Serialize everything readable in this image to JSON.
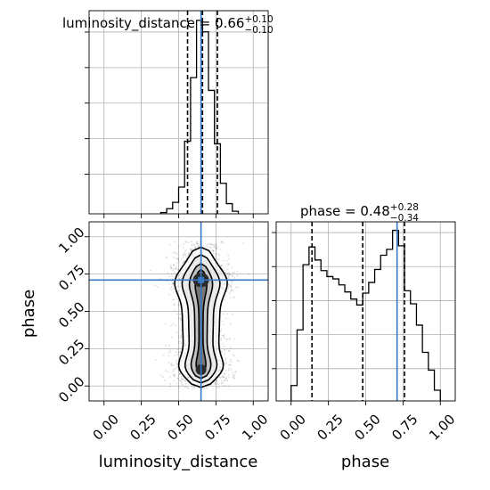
{
  "chart_data": {
    "type": "corner",
    "parameters": [
      "luminosity_distance",
      "phase"
    ],
    "truth": {
      "luminosity_distance": 0.65,
      "phase": 0.71
    },
    "truth_color": "#3778bf",
    "line_color": "#000000",
    "panels": [
      {
        "id": "hist-luminosity_distance",
        "type": "histogram",
        "title_param": "luminosity_distance",
        "title_value": "0.66",
        "title_plus": "+0.10",
        "title_minus": "−0.10",
        "xlim": [
          -0.1,
          1.1
        ],
        "xticks": [
          0.0,
          0.25,
          0.5,
          0.75,
          1.0
        ],
        "bin_edges": [
          0.38,
          0.42,
          0.46,
          0.5,
          0.54,
          0.58,
          0.62,
          0.66,
          0.7,
          0.74,
          0.78,
          0.82,
          0.86,
          0.9
        ],
        "counts": [
          1,
          4,
          9,
          21,
          57,
          107,
          152,
          143,
          97,
          55,
          24,
          8,
          2
        ],
        "quantiles": [
          0.56,
          0.66,
          0.76
        ]
      },
      {
        "id": "hist-phase",
        "type": "histogram",
        "title_param": "phase",
        "title_value": "0.48",
        "title_plus": "+0.28",
        "title_minus": "−0.34",
        "xlim": [
          -0.1,
          1.1
        ],
        "xticks": [
          0.0,
          0.25,
          0.5,
          0.75,
          1.0
        ],
        "bin_edges": [
          0.0,
          0.04,
          0.08,
          0.12,
          0.16,
          0.2,
          0.24,
          0.28,
          0.32,
          0.36,
          0.4,
          0.44,
          0.48,
          0.52,
          0.56,
          0.6,
          0.64,
          0.68,
          0.72,
          0.76,
          0.8,
          0.84,
          0.88,
          0.92,
          0.96,
          1.0
        ],
        "counts": [
          13,
          60,
          115,
          130,
          119,
          110,
          105,
          103,
          98,
          92,
          86,
          81,
          91,
          100,
          111,
          123,
          128,
          144,
          131,
          93,
          82,
          64,
          41,
          26,
          9
        ],
        "quantiles": [
          0.14,
          0.48,
          0.76
        ]
      },
      {
        "id": "joint-luminosity_distance-phase",
        "type": "2d-density",
        "x_param": "luminosity_distance",
        "y_param": "phase",
        "xlim": [
          -0.1,
          1.1
        ],
        "ylim": [
          -0.1,
          1.1
        ],
        "xticks": [
          0.0,
          0.25,
          0.5,
          0.75,
          1.0
        ],
        "yticks": [
          0.0,
          0.25,
          0.5,
          0.75,
          1.0
        ],
        "density_center_x": 0.65,
        "density_spread_x": 0.1,
        "phase_modes": [
          0.11,
          0.71
        ],
        "phase_mode_spreads": [
          0.06,
          0.05
        ],
        "contour_levels": 4
      }
    ],
    "xlabels": [
      "luminosity_distance",
      "phase"
    ],
    "ylabel": "phase",
    "tick_labels": [
      "0.00",
      "0.25",
      "0.50",
      "0.75",
      "1.00"
    ]
  }
}
